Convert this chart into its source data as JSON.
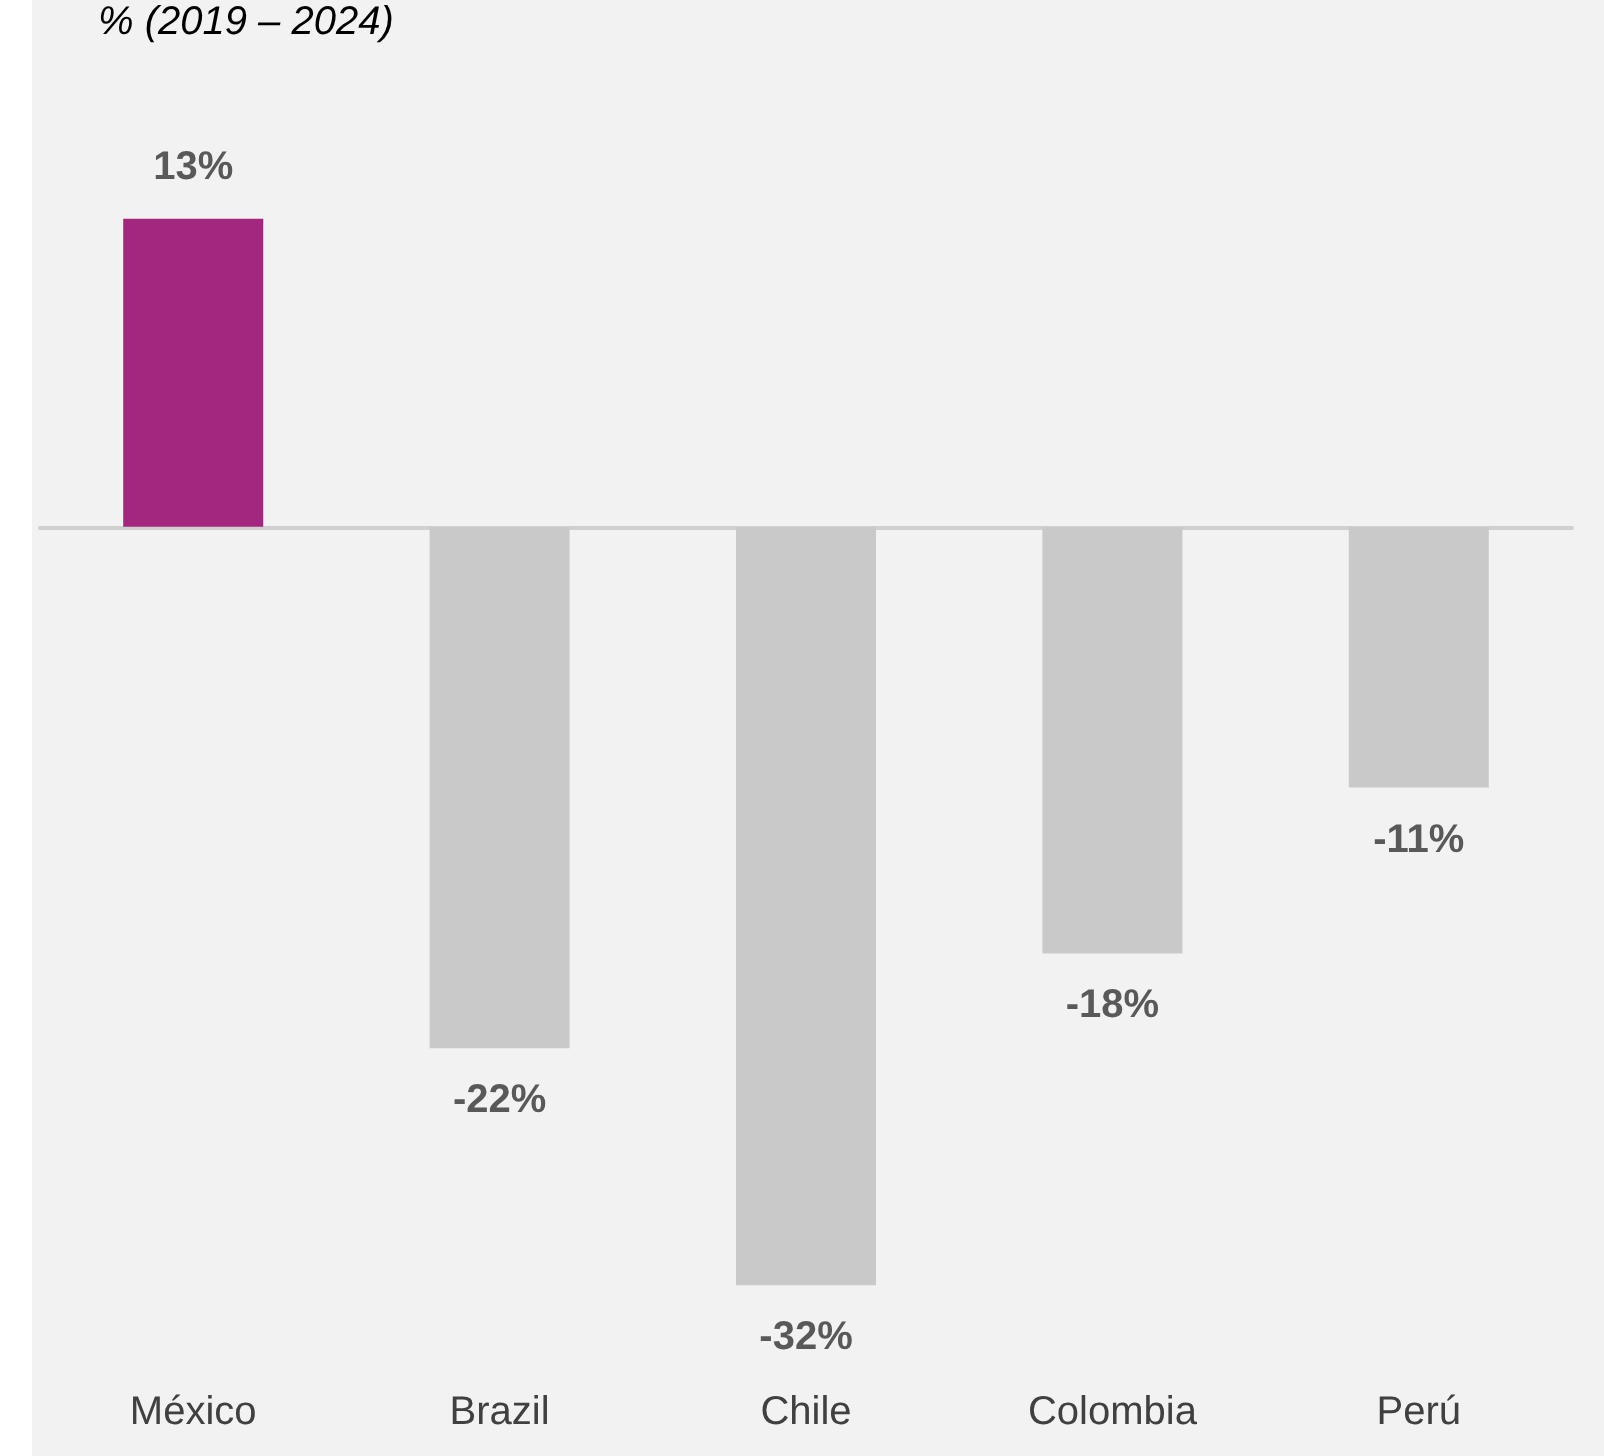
{
  "chart_data": {
    "type": "bar",
    "title": "% (2019 – 2024)",
    "categories": [
      "México",
      "Brazil",
      "Chile",
      "Colombia",
      "Perú"
    ],
    "values": [
      13,
      -22,
      -32,
      -18,
      -11
    ],
    "value_labels": [
      "13%",
      "-22%",
      "-32%",
      "-18%",
      "-11%"
    ],
    "colors": [
      "#a3267f",
      "#c9c9c9",
      "#c9c9c9",
      "#c9c9c9",
      "#c9c9c9"
    ],
    "tick_labels": "x"
  }
}
